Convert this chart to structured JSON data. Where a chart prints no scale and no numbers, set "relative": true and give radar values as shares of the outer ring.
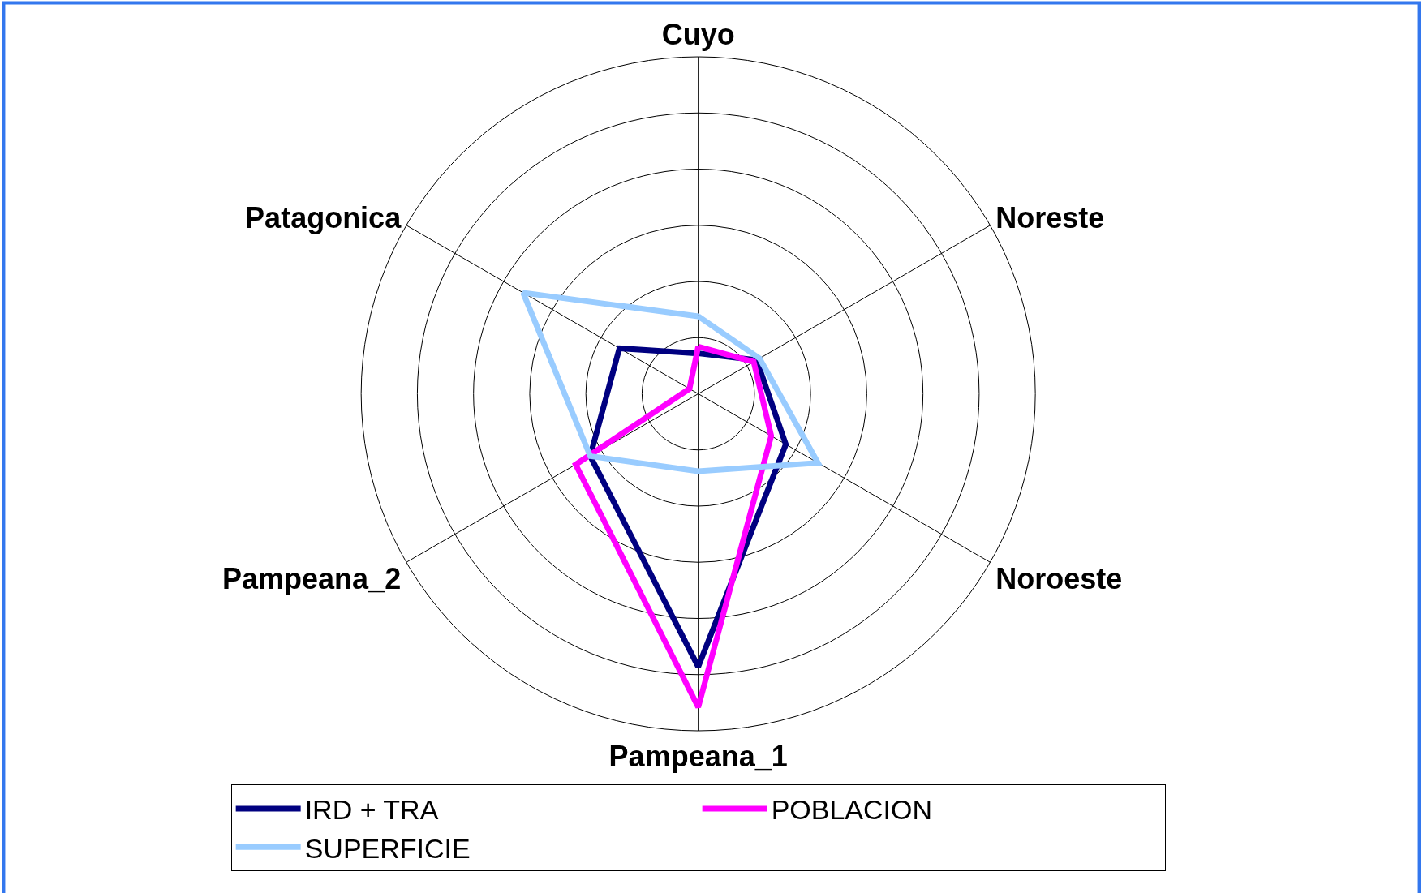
{
  "chart_data": {
    "type": "radar",
    "relative": true,
    "categories": [
      "Cuyo",
      "Noreste",
      "Noroeste",
      "Pampeana_1",
      "Pampeana_2",
      "Patagonica"
    ],
    "series": [
      {
        "name": "IRD + TRA",
        "color": "#000080",
        "values": [
          0.12,
          0.2,
          0.3,
          0.81,
          0.37,
          0.27
        ]
      },
      {
        "name": "POBLACION",
        "color": "#ff00ff",
        "values": [
          0.14,
          0.19,
          0.25,
          0.93,
          0.42,
          0.03
        ]
      },
      {
        "name": "SUPERFICIE",
        "color": "#99ccff",
        "values": [
          0.23,
          0.21,
          0.41,
          0.23,
          0.37,
          0.6
        ]
      }
    ],
    "legend": "bottom",
    "grid": true,
    "marker": "none",
    "line_style": "solid"
  }
}
